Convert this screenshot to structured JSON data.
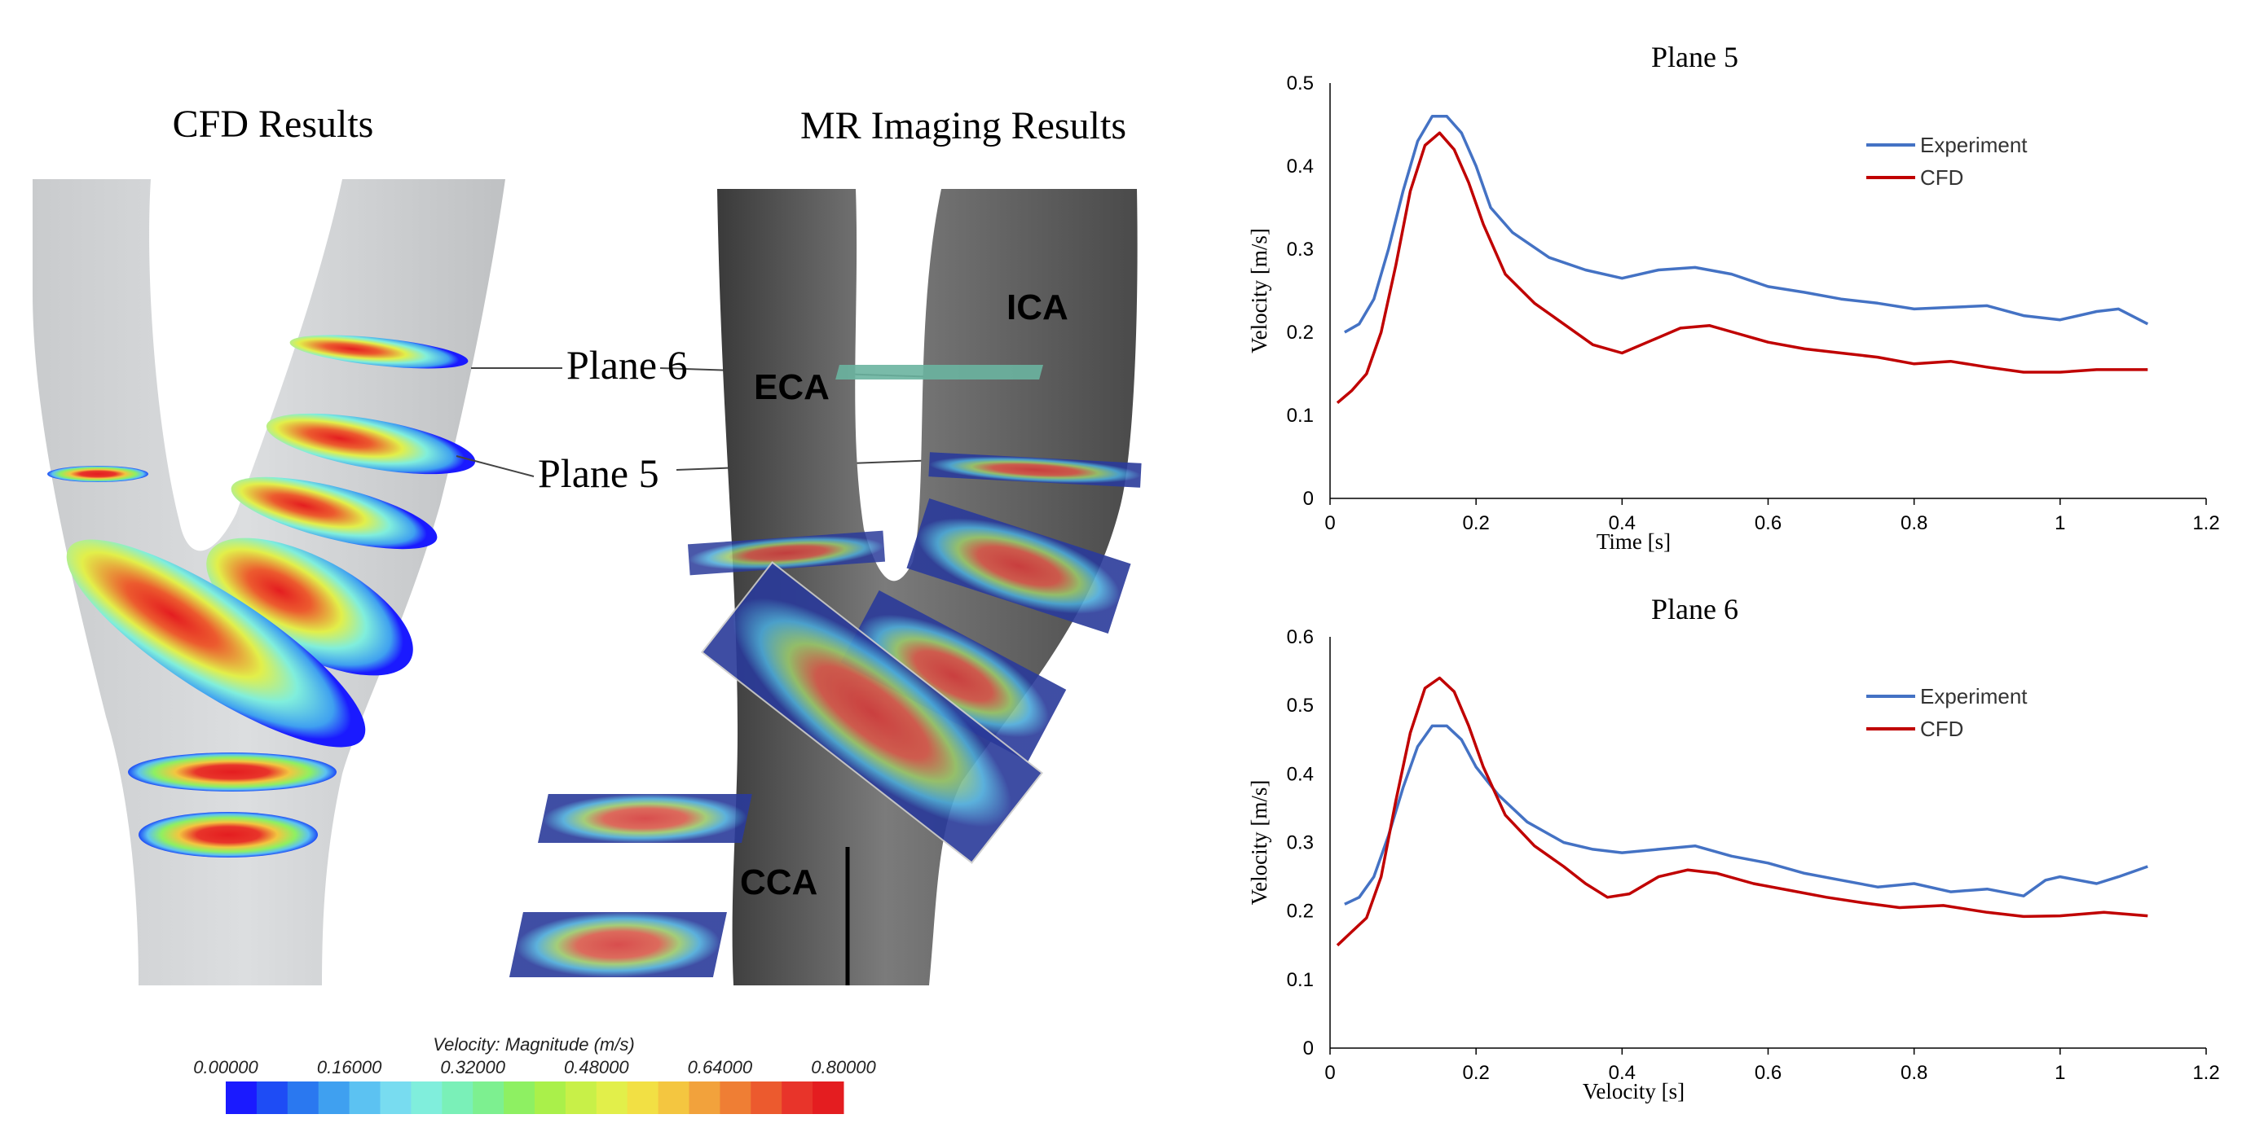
{
  "panels": {
    "cfd_title": "CFD Results",
    "mr_title": "MR Imaging Results",
    "plane6_callout": "Plane 6",
    "plane5_callout": "Plane 5",
    "vessel_labels": {
      "eca": "ECA",
      "ica": "ICA",
      "cca": "CCA"
    }
  },
  "colorbar": {
    "title": "Velocity: Magnitude (m/s)",
    "ticks": [
      "0.00000",
      "0.16000",
      "0.32000",
      "0.48000",
      "0.64000",
      "0.80000"
    ],
    "colors": [
      "#1a1aff",
      "#1e4cf5",
      "#2a78f0",
      "#3fa0f0",
      "#5cc2f2",
      "#78dcf0",
      "#80eedc",
      "#7af0b8",
      "#7df090",
      "#8ef062",
      "#aaf04a",
      "#c8f048",
      "#e2ef4a",
      "#f2e044",
      "#f4c640",
      "#f2a23c",
      "#ef7e34",
      "#ec5a2e",
      "#e8342a",
      "#e41d20"
    ]
  },
  "chart_data": [
    {
      "type": "line",
      "title": "Plane 5",
      "xlabel": "Time [s]",
      "ylabel": "Velocity [m/s]",
      "xlim": [
        0,
        1.2
      ],
      "ylim": [
        0,
        0.5
      ],
      "xticks": [
        "0",
        "0.2",
        "0.4",
        "0.6",
        "0.8",
        "1",
        "1.2"
      ],
      "yticks": [
        "0",
        "0.1",
        "0.2",
        "0.3",
        "0.4",
        "0.5"
      ],
      "legend_position": "top-right",
      "series": [
        {
          "name": "Experiment",
          "color": "#4472c4",
          "points": [
            [
              0.02,
              0.2
            ],
            [
              0.04,
              0.21
            ],
            [
              0.06,
              0.24
            ],
            [
              0.08,
              0.3
            ],
            [
              0.1,
              0.37
            ],
            [
              0.12,
              0.43
            ],
            [
              0.14,
              0.46
            ],
            [
              0.16,
              0.46
            ],
            [
              0.18,
              0.44
            ],
            [
              0.2,
              0.4
            ],
            [
              0.22,
              0.35
            ],
            [
              0.25,
              0.32
            ],
            [
              0.3,
              0.29
            ],
            [
              0.35,
              0.275
            ],
            [
              0.4,
              0.265
            ],
            [
              0.45,
              0.275
            ],
            [
              0.5,
              0.278
            ],
            [
              0.55,
              0.27
            ],
            [
              0.6,
              0.255
            ],
            [
              0.65,
              0.248
            ],
            [
              0.7,
              0.24
            ],
            [
              0.75,
              0.235
            ],
            [
              0.8,
              0.228
            ],
            [
              0.85,
              0.23
            ],
            [
              0.9,
              0.232
            ],
            [
              0.95,
              0.22
            ],
            [
              1.0,
              0.215
            ],
            [
              1.05,
              0.225
            ],
            [
              1.08,
              0.228
            ],
            [
              1.12,
              0.21
            ]
          ]
        },
        {
          "name": "CFD",
          "color": "#c00000",
          "points": [
            [
              0.01,
              0.115
            ],
            [
              0.03,
              0.13
            ],
            [
              0.05,
              0.15
            ],
            [
              0.07,
              0.2
            ],
            [
              0.09,
              0.28
            ],
            [
              0.11,
              0.37
            ],
            [
              0.13,
              0.425
            ],
            [
              0.15,
              0.44
            ],
            [
              0.17,
              0.42
            ],
            [
              0.19,
              0.38
            ],
            [
              0.21,
              0.33
            ],
            [
              0.24,
              0.27
            ],
            [
              0.28,
              0.235
            ],
            [
              0.32,
              0.21
            ],
            [
              0.36,
              0.185
            ],
            [
              0.4,
              0.175
            ],
            [
              0.44,
              0.19
            ],
            [
              0.48,
              0.205
            ],
            [
              0.52,
              0.208
            ],
            [
              0.56,
              0.198
            ],
            [
              0.6,
              0.188
            ],
            [
              0.65,
              0.18
            ],
            [
              0.7,
              0.175
            ],
            [
              0.75,
              0.17
            ],
            [
              0.8,
              0.162
            ],
            [
              0.85,
              0.165
            ],
            [
              0.9,
              0.158
            ],
            [
              0.95,
              0.152
            ],
            [
              1.0,
              0.152
            ],
            [
              1.05,
              0.155
            ],
            [
              1.12,
              0.155
            ]
          ]
        }
      ]
    },
    {
      "type": "line",
      "title": "Plane 6",
      "xlabel": "Velocity [s]",
      "ylabel": "Velocity [m/s]",
      "xlim": [
        0,
        1.2
      ],
      "ylim": [
        0,
        0.6
      ],
      "xticks": [
        "0",
        "0.2",
        "0.4",
        "0.6",
        "0.8",
        "1",
        "1.2"
      ],
      "yticks": [
        "0",
        "0.1",
        "0.2",
        "0.3",
        "0.4",
        "0.5",
        "0.6"
      ],
      "legend_position": "top-right",
      "series": [
        {
          "name": "Experiment",
          "color": "#4472c4",
          "points": [
            [
              0.02,
              0.21
            ],
            [
              0.04,
              0.22
            ],
            [
              0.06,
              0.25
            ],
            [
              0.08,
              0.31
            ],
            [
              0.1,
              0.38
            ],
            [
              0.12,
              0.44
            ],
            [
              0.14,
              0.47
            ],
            [
              0.16,
              0.47
            ],
            [
              0.18,
              0.45
            ],
            [
              0.2,
              0.41
            ],
            [
              0.23,
              0.37
            ],
            [
              0.27,
              0.33
            ],
            [
              0.32,
              0.3
            ],
            [
              0.36,
              0.29
            ],
            [
              0.4,
              0.285
            ],
            [
              0.45,
              0.29
            ],
            [
              0.5,
              0.295
            ],
            [
              0.55,
              0.28
            ],
            [
              0.6,
              0.27
            ],
            [
              0.65,
              0.255
            ],
            [
              0.7,
              0.245
            ],
            [
              0.75,
              0.235
            ],
            [
              0.8,
              0.24
            ],
            [
              0.85,
              0.228
            ],
            [
              0.9,
              0.232
            ],
            [
              0.95,
              0.222
            ],
            [
              0.98,
              0.245
            ],
            [
              1.0,
              0.25
            ],
            [
              1.05,
              0.24
            ],
            [
              1.08,
              0.25
            ],
            [
              1.12,
              0.265
            ]
          ]
        },
        {
          "name": "CFD",
          "color": "#c00000",
          "points": [
            [
              0.01,
              0.15
            ],
            [
              0.03,
              0.17
            ],
            [
              0.05,
              0.19
            ],
            [
              0.07,
              0.25
            ],
            [
              0.09,
              0.36
            ],
            [
              0.11,
              0.46
            ],
            [
              0.13,
              0.525
            ],
            [
              0.15,
              0.54
            ],
            [
              0.17,
              0.52
            ],
            [
              0.19,
              0.47
            ],
            [
              0.21,
              0.41
            ],
            [
              0.24,
              0.34
            ],
            [
              0.28,
              0.295
            ],
            [
              0.32,
              0.265
            ],
            [
              0.35,
              0.24
            ],
            [
              0.38,
              0.22
            ],
            [
              0.41,
              0.225
            ],
            [
              0.45,
              0.25
            ],
            [
              0.49,
              0.26
            ],
            [
              0.53,
              0.255
            ],
            [
              0.58,
              0.24
            ],
            [
              0.63,
              0.23
            ],
            [
              0.68,
              0.22
            ],
            [
              0.73,
              0.212
            ],
            [
              0.78,
              0.205
            ],
            [
              0.84,
              0.208
            ],
            [
              0.9,
              0.198
            ],
            [
              0.95,
              0.192
            ],
            [
              1.0,
              0.193
            ],
            [
              1.06,
              0.198
            ],
            [
              1.12,
              0.193
            ]
          ]
        }
      ]
    }
  ]
}
